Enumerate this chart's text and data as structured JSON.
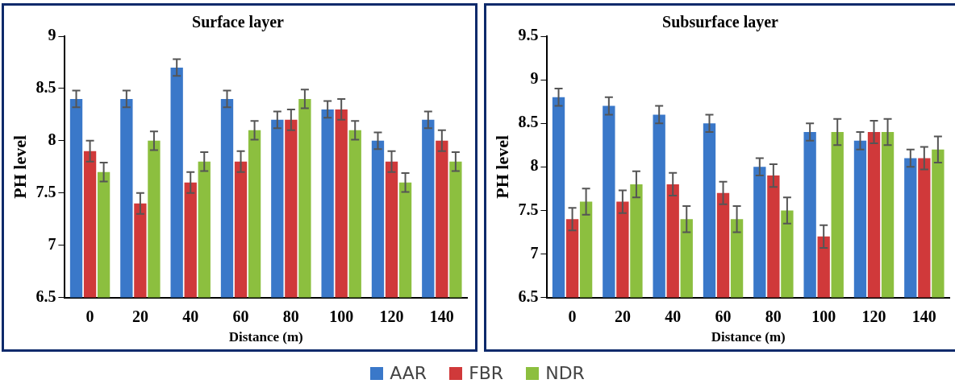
{
  "chart_data": [
    {
      "type": "bar",
      "title": "Surface layer",
      "xlabel": "Distance (m)",
      "ylabel": "PH level",
      "categories": [
        "0",
        "20",
        "40",
        "60",
        "80",
        "100",
        "120",
        "140"
      ],
      "ylim": [
        6.5,
        9
      ],
      "yticks": [
        6.5,
        7,
        7.5,
        8,
        8.5,
        9
      ],
      "grid": false,
      "legend": "bottom",
      "series": [
        {
          "name": "AAR",
          "color": "#3a78c9",
          "values": [
            8.4,
            8.4,
            8.7,
            8.4,
            8.2,
            8.3,
            8,
            8.2
          ],
          "errors": [
            0.08,
            0.08,
            0.08,
            0.08,
            0.08,
            0.08,
            0.08,
            0.08
          ]
        },
        {
          "name": "FBR",
          "color": "#d0393a",
          "values": [
            7.9,
            7.4,
            7.6,
            7.8,
            8.2,
            8.3,
            7.8,
            8
          ],
          "errors": [
            0.1,
            0.1,
            0.1,
            0.1,
            0.1,
            0.1,
            0.1,
            0.1
          ]
        },
        {
          "name": "NDR",
          "color": "#8cbf3f",
          "values": [
            7.7,
            8,
            7.8,
            8.1,
            8.4,
            8.1,
            7.6,
            7.8
          ],
          "errors": [
            0.09,
            0.09,
            0.09,
            0.09,
            0.09,
            0.09,
            0.09,
            0.09
          ]
        }
      ]
    },
    {
      "type": "bar",
      "title": "Subsurface layer",
      "xlabel": "Distance (m)",
      "ylabel": "PH level",
      "categories": [
        "0",
        "20",
        "40",
        "60",
        "80",
        "100",
        "120",
        "140"
      ],
      "ylim": [
        6.5,
        9.5
      ],
      "yticks": [
        6.5,
        7,
        7.5,
        8,
        8.5,
        9,
        9.5
      ],
      "grid": false,
      "series": [
        {
          "color": "#3a78c9",
          "values": [
            8.8,
            8.7,
            8.6,
            8.5,
            8,
            8.4,
            8.3,
            8.1
          ],
          "errors": [
            0.1,
            0.1,
            0.1,
            0.1,
            0.1,
            0.1,
            0.1,
            0.1
          ]
        },
        {
          "color": "#d0393a",
          "values": [
            7.4,
            7.6,
            7.8,
            7.7,
            7.9,
            7.2,
            8.4,
            8.1
          ],
          "errors": [
            0.13,
            0.13,
            0.13,
            0.13,
            0.13,
            0.13,
            0.13,
            0.13
          ]
        },
        {
          "color": "#8cbf3f",
          "values": [
            7.6,
            7.8,
            7.4,
            7.4,
            7.5,
            8.4,
            8.4,
            8.2
          ],
          "errors": [
            0.15,
            0.15,
            0.15,
            0.15,
            0.15,
            0.15,
            0.15,
            0.15
          ]
        }
      ]
    }
  ]
}
